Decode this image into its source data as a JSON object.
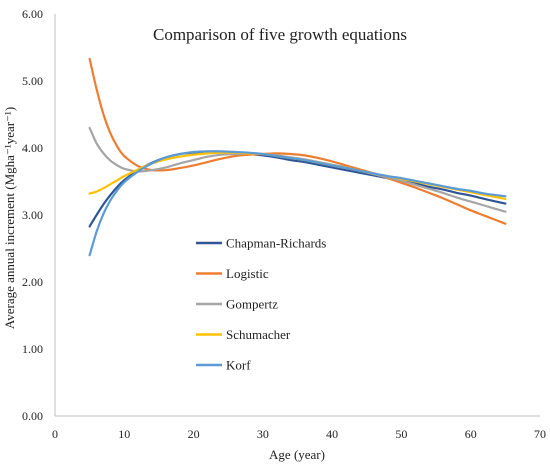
{
  "chart_data": {
    "type": "line",
    "title": "Comparison of five growth equations",
    "xlabel": "Age (year)",
    "ylabel": "Average annual increment (Mgha⁻¹year⁻¹)",
    "xlim": [
      0,
      70
    ],
    "ylim": [
      0,
      6
    ],
    "xticks": [
      "0",
      "10",
      "20",
      "30",
      "40",
      "50",
      "60",
      "70"
    ],
    "yticks": [
      "0.00",
      "1.00",
      "2.00",
      "3.00",
      "4.00",
      "5.00",
      "6.00"
    ],
    "grid": false,
    "legend_position": "center-left",
    "x": [
      5,
      6,
      7,
      8,
      9,
      10,
      12,
      14,
      16,
      18,
      20,
      22,
      24,
      26,
      28,
      30,
      32,
      34,
      36,
      38,
      40,
      42,
      44,
      46,
      48,
      50,
      52,
      54,
      56,
      58,
      60,
      62,
      65
    ],
    "series": [
      {
        "name": "Chapman-Richards",
        "color": "#2f5597",
        "values": [
          2.83,
          3.0,
          3.16,
          3.3,
          3.42,
          3.52,
          3.67,
          3.78,
          3.86,
          3.91,
          3.93,
          3.94,
          3.94,
          3.93,
          3.91,
          3.89,
          3.86,
          3.82,
          3.79,
          3.75,
          3.71,
          3.67,
          3.63,
          3.59,
          3.55,
          3.51,
          3.47,
          3.42,
          3.38,
          3.33,
          3.29,
          3.24,
          3.17
        ]
      },
      {
        "name": "Logistic",
        "color": "#ed7d31",
        "values": [
          5.33,
          4.88,
          4.5,
          4.22,
          4.02,
          3.88,
          3.73,
          3.67,
          3.67,
          3.7,
          3.74,
          3.79,
          3.84,
          3.88,
          3.9,
          3.91,
          3.92,
          3.91,
          3.89,
          3.85,
          3.8,
          3.74,
          3.68,
          3.62,
          3.55,
          3.48,
          3.41,
          3.33,
          3.25,
          3.16,
          3.07,
          2.99,
          2.87
        ]
      },
      {
        "name": "Gompertz",
        "color": "#a5a5a5",
        "values": [
          4.3,
          4.07,
          3.92,
          3.81,
          3.74,
          3.69,
          3.65,
          3.67,
          3.71,
          3.77,
          3.82,
          3.87,
          3.9,
          3.91,
          3.92,
          3.91,
          3.89,
          3.86,
          3.83,
          3.79,
          3.75,
          3.71,
          3.66,
          3.61,
          3.56,
          3.51,
          3.45,
          3.39,
          3.33,
          3.26,
          3.2,
          3.14,
          3.05
        ]
      },
      {
        "name": "Schumacher",
        "color": "#ffc000",
        "values": [
          3.32,
          3.35,
          3.4,
          3.46,
          3.52,
          3.58,
          3.68,
          3.77,
          3.83,
          3.87,
          3.9,
          3.92,
          3.93,
          3.93,
          3.92,
          3.91,
          3.88,
          3.85,
          3.82,
          3.78,
          3.74,
          3.7,
          3.66,
          3.62,
          3.58,
          3.54,
          3.5,
          3.46,
          3.42,
          3.38,
          3.34,
          3.3,
          3.24
        ]
      },
      {
        "name": "Korf",
        "color": "#5b9bd5",
        "values": [
          2.4,
          2.75,
          3.02,
          3.22,
          3.37,
          3.49,
          3.65,
          3.77,
          3.86,
          3.91,
          3.94,
          3.95,
          3.95,
          3.94,
          3.93,
          3.91,
          3.88,
          3.85,
          3.82,
          3.78,
          3.74,
          3.7,
          3.66,
          3.62,
          3.58,
          3.55,
          3.51,
          3.47,
          3.43,
          3.39,
          3.36,
          3.32,
          3.28
        ]
      }
    ]
  }
}
